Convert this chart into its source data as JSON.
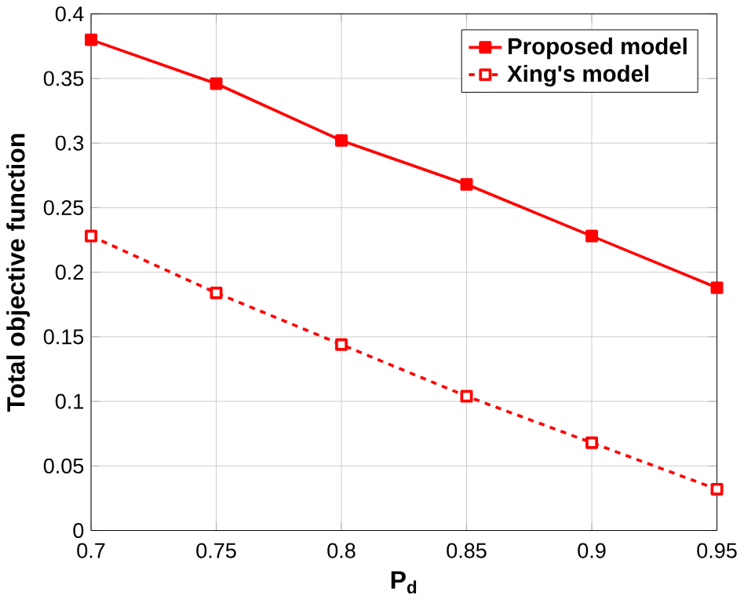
{
  "chart_data": {
    "type": "line",
    "xlabel": "P$_{d}$",
    "ylabel": "Total objective function",
    "x": [
      0.7,
      0.75,
      0.8,
      0.85,
      0.9,
      0.95
    ],
    "series": [
      {
        "name": "Proposed model",
        "color": "#ff0000",
        "values": [
          0.38,
          0.346,
          0.302,
          0.268,
          0.228,
          0.188
        ],
        "line_style": "solid"
      },
      {
        "name": "Xing's model",
        "color": "#ff0000",
        "values": [
          0.228,
          0.184,
          0.144,
          0.104,
          0.068,
          0.032
        ],
        "line_style": "dashed"
      }
    ],
    "xlim": [
      0.7,
      0.95
    ],
    "xticks": [
      0.7,
      0.75,
      0.8,
      0.85,
      0.9,
      0.95
    ],
    "ylim": [
      0,
      0.4
    ],
    "yticks": [
      0,
      0.05,
      0.1,
      0.15,
      0.2,
      0.25,
      0.3,
      0.35,
      0.4
    ],
    "grid": true,
    "legend": "top right",
    "marker": "square"
  }
}
